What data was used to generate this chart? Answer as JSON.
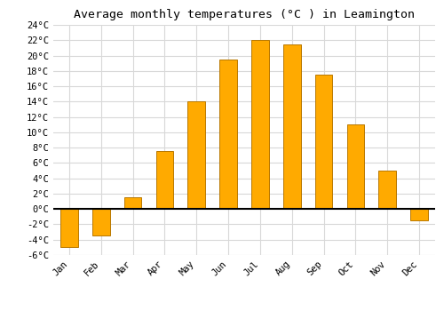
{
  "months": [
    "Jan",
    "Feb",
    "Mar",
    "Apr",
    "May",
    "Jun",
    "Jul",
    "Aug",
    "Sep",
    "Oct",
    "Nov",
    "Dec"
  ],
  "values": [
    -5.0,
    -3.5,
    1.5,
    7.5,
    14.0,
    19.5,
    22.0,
    21.5,
    17.5,
    11.0,
    5.0,
    -1.5
  ],
  "bar_color": "#FFAA00",
  "bar_edge_color": "#B87800",
  "title": "Average monthly temperatures (°C ) in Leamington",
  "ylim": [
    -6,
    24
  ],
  "yticks": [
    -6,
    -4,
    -2,
    0,
    2,
    4,
    6,
    8,
    10,
    12,
    14,
    16,
    18,
    20,
    22,
    24
  ],
  "background_color": "#ffffff",
  "grid_color": "#d8d8d8",
  "title_fontsize": 9.5,
  "tick_fontsize": 7.5,
  "bar_width": 0.55
}
